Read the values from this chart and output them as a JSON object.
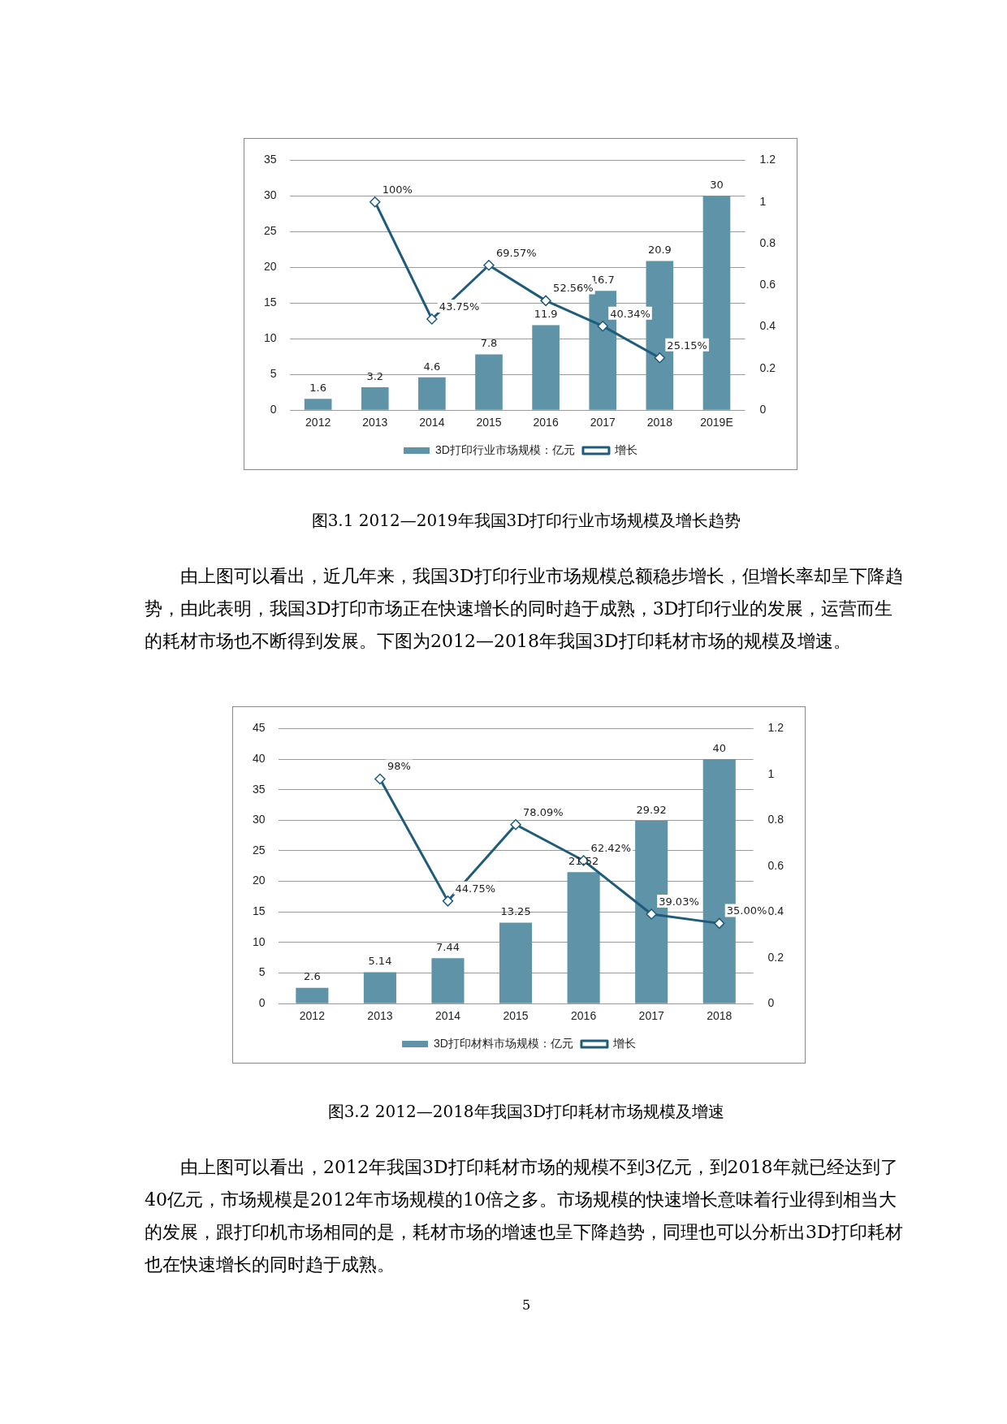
{
  "chart_data": [
    {
      "type": "bar",
      "categories": [
        "2012",
        "2013",
        "2014",
        "2015",
        "2016",
        "2017",
        "2018",
        "2019E"
      ],
      "series": [
        {
          "name": "3D打印行业市场规模：亿元",
          "color": "#5f93a8",
          "values": [
            1.6,
            3.2,
            4.6,
            7.8,
            11.9,
            16.7,
            20.9,
            30
          ],
          "value_labels": [
            "1.6",
            "3.2",
            "4.6",
            "7.8",
            "11.9",
            "16.7",
            "20.9",
            "30"
          ]
        },
        {
          "name": "增长",
          "type": "line",
          "axis": "y2",
          "color": "#1f5c7c",
          "values": [
            null,
            1,
            0.4375,
            0.6957,
            0.5256,
            0.4034,
            0.2515,
            null
          ],
          "value_labels": [
            null,
            "100%",
            "43.75%",
            "69.57%",
            "52.56%",
            "40.34%",
            "25.15%",
            null
          ]
        }
      ],
      "ylim": [
        0,
        35
      ],
      "yticks": [
        0,
        5,
        10,
        15,
        20,
        25,
        30,
        35
      ],
      "y2lim": [
        0,
        1.2
      ],
      "y2ticks": [
        0,
        0.2,
        0.4,
        0.6,
        0.8,
        1,
        1.2
      ],
      "grid": "y",
      "legend": "bottom",
      "marker": "diamond",
      "annotations": [
        "图3.1 2012—2019年我国3D打印行业市场规模及增长趋势",
        "由上图可以看出，近几年来，我国3D打印行业市场规模总额稳步增长，但增长率却呈下降趋势，由此表明，我国3D打印市场正在快速增长的同时趋于成熟，3D打印行业的发展，运营而生的耗材市场也不断得到发展。下图为2012—2018年我国3D打印耗材市场的规模及增速。"
      ]
    },
    {
      "type": "bar",
      "categories": [
        "2012",
        "2013",
        "2014",
        "2015",
        "2016",
        "2017",
        "2018"
      ],
      "series": [
        {
          "name": "3D打印材料市场规模：亿元",
          "color": "#5f93a8",
          "values": [
            2.6,
            5.14,
            7.44,
            13.25,
            21.52,
            29.92,
            40
          ],
          "value_labels": [
            "2.6",
            "5.14",
            "7.44",
            "13.25",
            "21.52",
            "29.92",
            "40"
          ]
        },
        {
          "name": "增长",
          "type": "line",
          "axis": "y2",
          "color": "#1f5c7c",
          "values": [
            null,
            0.98,
            0.4475,
            0.7809,
            0.6242,
            0.3903,
            0.35
          ],
          "value_labels": [
            null,
            "98%",
            "44.75%",
            "78.09%",
            "62.42%",
            "39.03%",
            "35.00%"
          ]
        }
      ],
      "ylim": [
        0,
        45
      ],
      "yticks": [
        0,
        5,
        10,
        15,
        20,
        25,
        30,
        35,
        40,
        45
      ],
      "y2lim": [
        0,
        1.2
      ],
      "y2ticks": [
        0,
        0.2,
        0.4,
        0.6,
        0.8,
        1,
        1.2
      ],
      "grid": "y",
      "legend": "bottom",
      "marker": "diamond",
      "annotations": [
        "图3.2 2012—2018年我国3D打印耗材市场规模及增速",
        "由上图可以看出，2012年我国3D打印耗材市场的规模不到3亿元，到2018年就已经达到了40亿元，市场规模是2012年市场规模的10倍之多。市场规模的快速增长意味着行业得到相当大的发展，跟打印机市场相同的是，耗材市场的增速也呈下降趋势，同理也可以分析出3D打印耗材也在快速增长的同时趋于成熟。",
        "5"
      ]
    }
  ]
}
